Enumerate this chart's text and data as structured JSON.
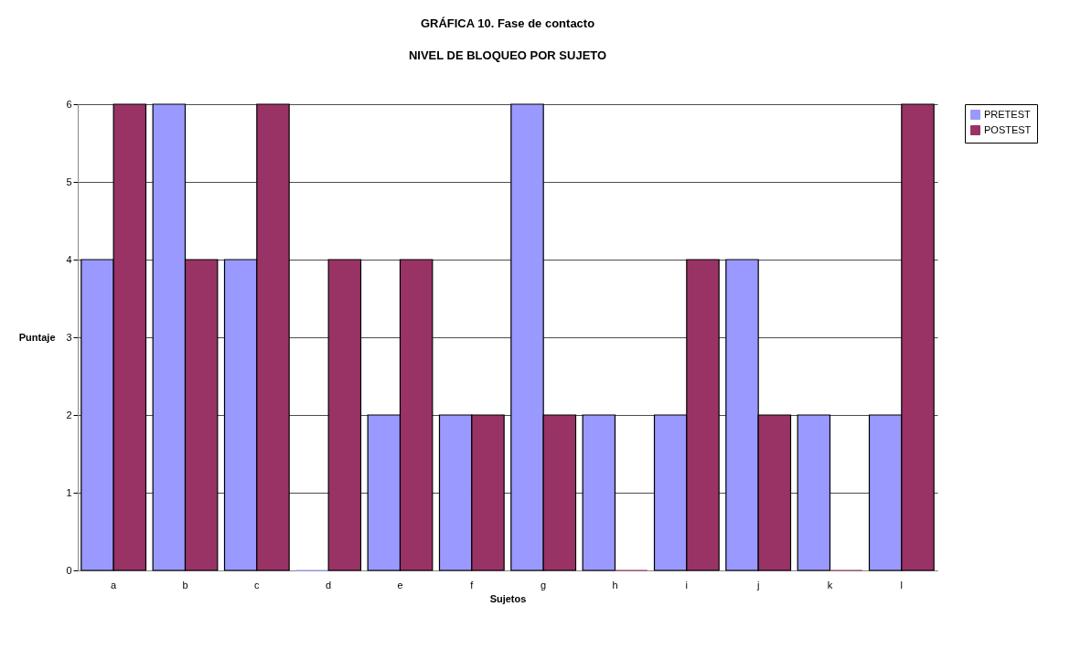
{
  "chart_data": {
    "type": "bar",
    "title": "GRÁFICA 10. Fase de contacto",
    "subtitle": "NIVEL DE BLOQUEO POR SUJETO",
    "xlabel": "Sujetos",
    "ylabel": "Puntaje",
    "categories": [
      "a",
      "b",
      "c",
      "d",
      "e",
      "f",
      "g",
      "h",
      "i",
      "j",
      "k",
      "l"
    ],
    "series": [
      {
        "name": "PRETEST",
        "color": "#9999ff",
        "values": [
          4,
          6,
          4,
          0,
          2,
          2,
          6,
          2,
          2,
          4,
          2,
          2
        ]
      },
      {
        "name": "POSTEST",
        "color": "#993366",
        "values": [
          6,
          4,
          6,
          4,
          4,
          2,
          2,
          0,
          4,
          2,
          0,
          6
        ]
      }
    ],
    "ylim": [
      0,
      6
    ],
    "yticks": [
      0,
      1,
      2,
      3,
      4,
      5,
      6
    ],
    "grid": "y",
    "legend": "right"
  }
}
